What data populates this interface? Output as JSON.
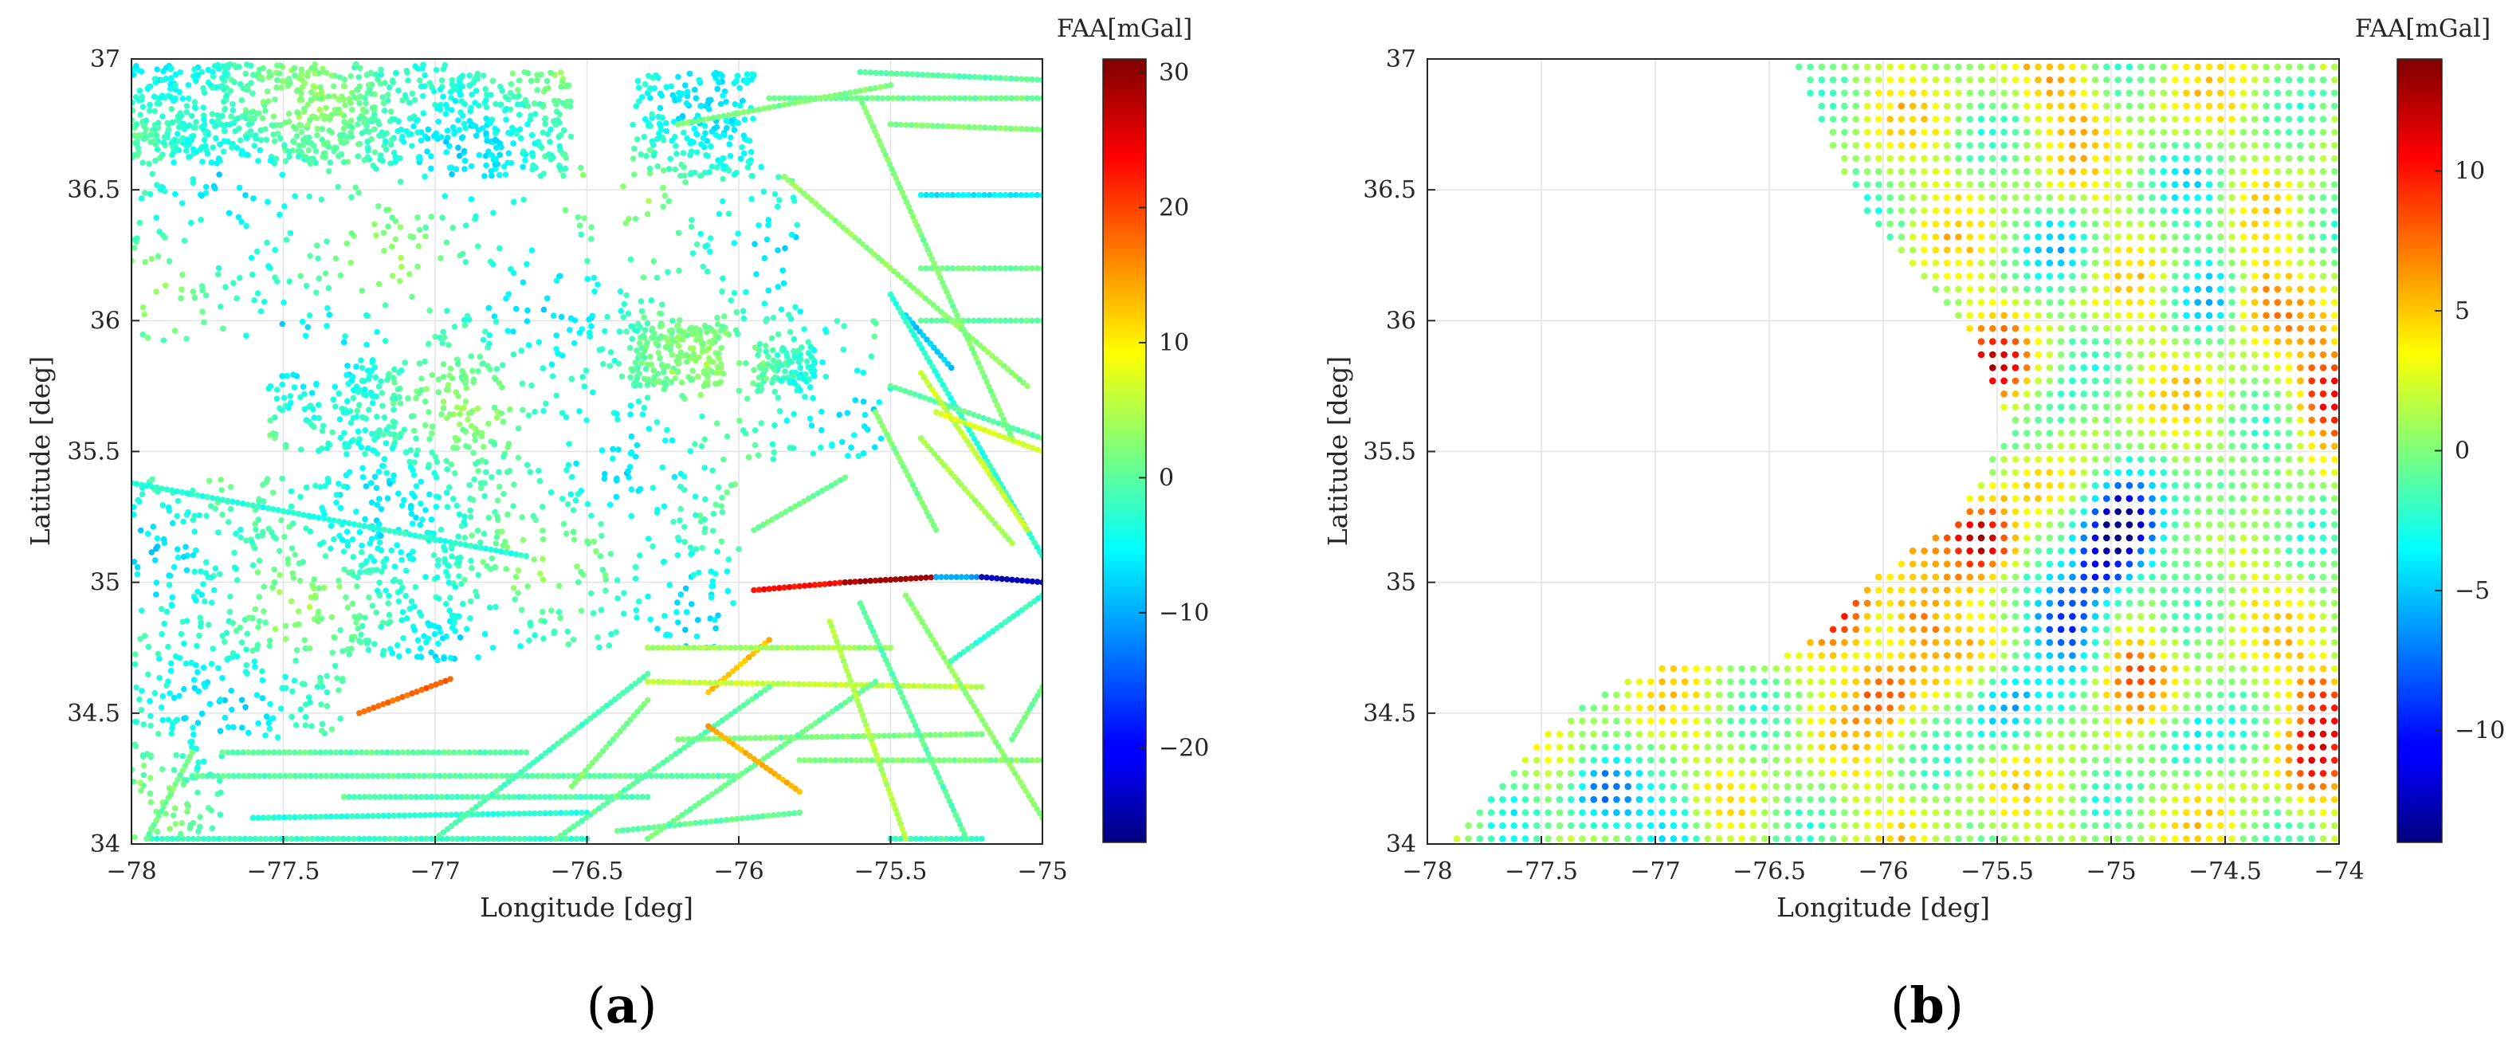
{
  "figure": {
    "panels": [
      {
        "id": "a",
        "label_open": "(",
        "label_letter": "a",
        "label_close": ")"
      },
      {
        "id": "b",
        "label_open": "(",
        "label_letter": "b",
        "label_close": ")"
      }
    ]
  },
  "chart_data": [
    {
      "type": "scatter",
      "panel": "(a)",
      "xlabel": "Longitude [deg]",
      "ylabel": "Latitude [deg]",
      "xlim": [
        -78,
        -75
      ],
      "ylim": [
        34,
        37
      ],
      "xticks": [
        -78,
        -77.5,
        -77,
        -76.5,
        -76,
        -75.5,
        -75
      ],
      "yticks": [
        34,
        34.5,
        35,
        35.5,
        36,
        36.5,
        37
      ],
      "xtick_labels": [
        "−78",
        "−77.5",
        "−77",
        "−76.5",
        "−76",
        "−75.5",
        "−75"
      ],
      "ytick_labels": [
        "34",
        "34.5",
        "35",
        "35.5",
        "36",
        "36.5",
        "37"
      ],
      "grid": true,
      "colorbar": {
        "title": "FAA[mGal]",
        "range": [
          -27,
          31
        ],
        "ticks": [
          -20,
          -10,
          0,
          10,
          20,
          30
        ],
        "tick_labels": [
          "−20",
          "−10",
          "0",
          "10",
          "20",
          "30"
        ],
        "colormap": "jet"
      },
      "description_of_data": "Irregular free-air anomaly measurements: dense land stations and ship-track lines",
      "tracks": [
        {
          "from": [
            -77.25,
            34.5
          ],
          "to": [
            -76.95,
            34.63
          ],
          "value": 18
        },
        {
          "from": [
            -75.95,
            34.97
          ],
          "to": [
            -75.65,
            35.0
          ],
          "value": 23
        },
        {
          "from": [
            -75.65,
            35.0
          ],
          "to": [
            -75.35,
            35.02
          ],
          "value": 29
        },
        {
          "from": [
            -75.35,
            35.02
          ],
          "to": [
            -75.2,
            35.02
          ],
          "value": -10
        },
        {
          "from": [
            -75.2,
            35.02
          ],
          "to": [
            -75.0,
            35.0
          ],
          "value": -24
        },
        {
          "from": [
            -76.1,
            34.58
          ],
          "to": [
            -75.9,
            34.78
          ],
          "value": 13
        },
        {
          "from": [
            -75.45,
            36.02
          ],
          "to": [
            -75.3,
            35.82
          ],
          "value": -8
        },
        {
          "from": [
            -77.3,
            34.18
          ],
          "to": [
            -76.3,
            34.18
          ],
          "value": -1
        },
        {
          "from": [
            -77.8,
            34.26
          ],
          "to": [
            -76.0,
            34.26
          ],
          "value": 0
        },
        {
          "from": [
            -77.7,
            34.35
          ],
          "to": [
            -76.7,
            34.35
          ],
          "value": 0
        },
        {
          "from": [
            -76.3,
            34.75
          ],
          "to": [
            -75.5,
            34.75
          ],
          "value": 4
        },
        {
          "from": [
            -76.3,
            34.62
          ],
          "to": [
            -75.2,
            34.6
          ],
          "value": 6
        },
        {
          "from": [
            -76.2,
            34.4
          ],
          "to": [
            -75.2,
            34.42
          ],
          "value": 2
        },
        {
          "from": [
            -75.8,
            34.32
          ],
          "to": [
            -75.0,
            34.32
          ],
          "value": 2
        },
        {
          "from": [
            -77.6,
            34.1
          ],
          "to": [
            -76.5,
            34.12
          ],
          "value": -3
        },
        {
          "from": [
            -77.95,
            34.02
          ],
          "to": [
            -76.5,
            34.02
          ],
          "value": -2
        },
        {
          "from": [
            -75.5,
            34.02
          ],
          "to": [
            -75.2,
            34.02
          ],
          "value": -2
        },
        {
          "from": [
            -78.0,
            35.38
          ],
          "to": [
            -76.7,
            35.1
          ],
          "value": -3
        },
        {
          "from": [
            -75.9,
            36.85
          ],
          "to": [
            -75.0,
            36.85
          ],
          "value": 1
        },
        {
          "from": [
            -75.6,
            36.95
          ],
          "to": [
            -75.0,
            36.92
          ],
          "value": 0
        },
        {
          "from": [
            -75.5,
            36.75
          ],
          "to": [
            -75.0,
            36.73
          ],
          "value": 2
        },
        {
          "from": [
            -75.4,
            36.48
          ],
          "to": [
            -75.0,
            36.48
          ],
          "value": -6
        },
        {
          "from": [
            -75.4,
            36.2
          ],
          "to": [
            -75.0,
            36.2
          ],
          "value": 1
        },
        {
          "from": [
            -75.4,
            36.0
          ],
          "to": [
            -75.0,
            36.0
          ],
          "value": 0
        },
        {
          "from": [
            -76.2,
            36.75
          ],
          "to": [
            -75.5,
            36.9
          ],
          "value": 2
        },
        {
          "from": [
            -75.85,
            36.55
          ],
          "to": [
            -75.05,
            35.75
          ],
          "value": 3
        },
        {
          "from": [
            -75.6,
            36.85
          ],
          "to": [
            -75.1,
            35.55
          ],
          "value": 2
        },
        {
          "from": [
            -75.5,
            36.1
          ],
          "to": [
            -75.0,
            35.1
          ],
          "value": -3
        },
        {
          "from": [
            -75.5,
            35.75
          ],
          "to": [
            -75.0,
            35.55
          ],
          "value": 0
        },
        {
          "from": [
            -75.4,
            35.8
          ],
          "to": [
            -75.05,
            35.2
          ],
          "value": 6
        },
        {
          "from": [
            -75.35,
            35.65
          ],
          "to": [
            -75.0,
            35.5
          ],
          "value": 7
        },
        {
          "from": [
            -75.4,
            35.55
          ],
          "to": [
            -75.1,
            35.15
          ],
          "value": 4
        },
        {
          "from": [
            -75.6,
            34.92
          ],
          "to": [
            -75.25,
            34.02
          ],
          "value": 0
        },
        {
          "from": [
            -75.45,
            34.95
          ],
          "to": [
            -75.0,
            34.1
          ],
          "value": 3
        },
        {
          "from": [
            -75.3,
            34.7
          ],
          "to": [
            -75.0,
            34.95
          ],
          "value": -2
        },
        {
          "from": [
            -75.1,
            34.4
          ],
          "to": [
            -75.0,
            34.6
          ],
          "value": 1
        },
        {
          "from": [
            -76.6,
            34.02
          ],
          "to": [
            -75.9,
            34.6
          ],
          "value": 0
        },
        {
          "from": [
            -76.3,
            34.02
          ],
          "to": [
            -75.55,
            34.62
          ],
          "value": 1
        },
        {
          "from": [
            -76.55,
            34.22
          ],
          "to": [
            -76.3,
            34.55
          ],
          "value": 2
        },
        {
          "from": [
            -77.8,
            34.35
          ],
          "to": [
            -77.95,
            34.02
          ],
          "value": 1
        },
        {
          "from": [
            -76.1,
            34.45
          ],
          "to": [
            -75.8,
            34.2
          ],
          "value": 14
        },
        {
          "from": [
            -77.0,
            34.02
          ],
          "to": [
            -76.3,
            34.65
          ],
          "value": -1
        },
        {
          "from": [
            -75.7,
            34.85
          ],
          "to": [
            -75.45,
            34.02
          ],
          "value": 5
        },
        {
          "from": [
            -76.4,
            34.05
          ],
          "to": [
            -75.8,
            34.12
          ],
          "value": 0
        },
        {
          "from": [
            -75.55,
            35.65
          ],
          "to": [
            -75.35,
            35.2
          ],
          "value": 2
        },
        {
          "from": [
            -75.95,
            35.2
          ],
          "to": [
            -75.65,
            35.4
          ],
          "value": 1
        }
      ]
    },
    {
      "type": "scatter",
      "panel": "(b)",
      "xlabel": "Longitude [deg]",
      "ylabel": "Latitude [deg]",
      "xlim": [
        -78,
        -74
      ],
      "ylim": [
        34,
        37
      ],
      "xticks": [
        -78,
        -77.5,
        -77,
        -76.5,
        -76,
        -75.5,
        -75,
        -74.5,
        -74
      ],
      "yticks": [
        34,
        34.5,
        35,
        35.5,
        36,
        36.5,
        37
      ],
      "xtick_labels": [
        "−78",
        "−77.5",
        "−77",
        "−76.5",
        "−76",
        "−75.5",
        "−75",
        "−74.5",
        "−74"
      ],
      "ytick_labels": [
        "34",
        "34.5",
        "35",
        "35.5",
        "36",
        "36.5",
        "37"
      ],
      "grid": true,
      "colorbar": {
        "title": "FAA[mGal]",
        "range": [
          -14,
          14
        ],
        "ticks": [
          -10,
          -5,
          0,
          5,
          10
        ],
        "tick_labels": [
          "−10",
          "−5",
          "0",
          "5",
          "10"
        ],
        "colormap": "jet"
      },
      "description_of_data": "Regular offshore grid of free-air anomaly values (~0.05 deg spacing) east of the coastline",
      "grid_spacing_deg": 0.05,
      "coastline": [
        [
          -77.9,
          34.0
        ],
        [
          -77.6,
          34.33
        ],
        [
          -77.3,
          34.55
        ],
        [
          -77.0,
          34.67
        ],
        [
          -76.5,
          34.68
        ],
        [
          -76.25,
          34.82
        ],
        [
          -76.0,
          35.05
        ],
        [
          -75.7,
          35.22
        ],
        [
          -75.45,
          35.6
        ],
        [
          -75.62,
          35.95
        ],
        [
          -76.05,
          36.35
        ],
        [
          -76.25,
          36.7
        ],
        [
          -76.4,
          37.0
        ]
      ],
      "anomalies": [
        {
          "center": [
            -74.95,
            35.22
          ],
          "value": -14
        },
        {
          "center": [
            -75.05,
            35.05
          ],
          "value": -12
        },
        {
          "center": [
            -75.2,
            34.85
          ],
          "value": -11
        },
        {
          "center": [
            -75.48,
            34.52
          ],
          "value": -8
        },
        {
          "center": [
            -75.55,
            35.15
          ],
          "value": 13
        },
        {
          "center": [
            -75.52,
            35.82
          ],
          "value": 8
        },
        {
          "center": [
            -76.18,
            34.9
          ],
          "value": 9
        },
        {
          "center": [
            -75.98,
            34.6
          ],
          "value": 7
        },
        {
          "center": [
            -75.85,
            34.85
          ],
          "value": 6
        },
        {
          "center": [
            -74.05,
            35.72
          ],
          "value": 9
        },
        {
          "center": [
            -74.05,
            34.55
          ],
          "value": 7
        },
        {
          "center": [
            -74.12,
            34.3
          ],
          "value": 6
        },
        {
          "center": [
            -74.35,
            36.08
          ],
          "value": 6
        },
        {
          "center": [
            -74.9,
            34.68
          ],
          "value": 5
        },
        {
          "center": [
            -75.2,
            36.85
          ],
          "value": 4
        },
        {
          "center": [
            -77.25,
            34.2
          ],
          "value": -7
        },
        {
          "center": [
            -77.6,
            34.2
          ],
          "value": -5
        },
        {
          "center": [
            -76.9,
            34.05
          ],
          "value": -6
        },
        {
          "center": [
            -74.5,
            35.3
          ],
          "value": -6
        },
        {
          "center": [
            -74.7,
            34.4
          ],
          "value": -5
        },
        {
          "center": [
            -74.6,
            36.1
          ],
          "value": -5
        },
        {
          "center": [
            -74.6,
            36.5
          ],
          "value": -4
        },
        {
          "center": [
            -75.2,
            36.3
          ],
          "value": -4
        },
        {
          "center": [
            -75.3,
            35.6
          ],
          "value": -4
        }
      ]
    }
  ]
}
